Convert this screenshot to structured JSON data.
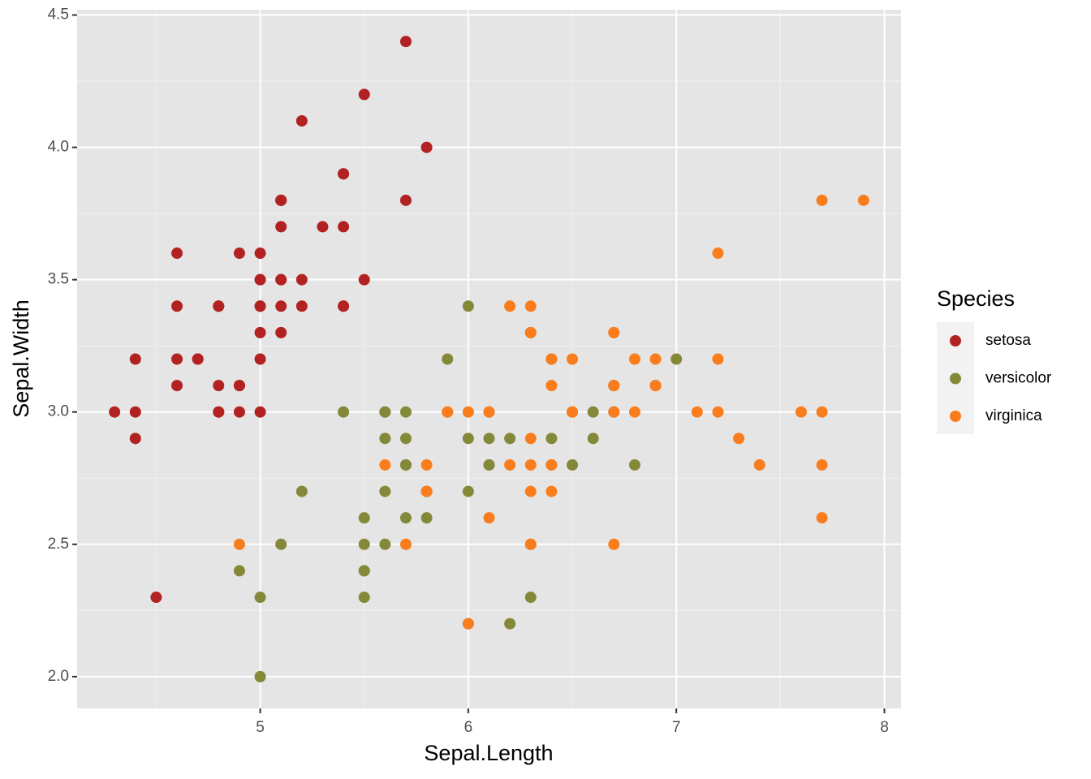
{
  "chart_data": {
    "type": "scatter",
    "x_label": "Sepal.Length",
    "y_label": "Sepal.Width",
    "legend_title": "Species",
    "xlim": [
      4.12,
      8.08
    ],
    "ylim": [
      1.88,
      4.52
    ],
    "xticks": [
      5,
      6,
      7,
      8
    ],
    "yticks": [
      {
        "value": 2,
        "label": "2.0"
      },
      2.5,
      {
        "value": 3,
        "label": "3.0"
      },
      3.5,
      {
        "value": 4,
        "label": "4.0"
      },
      4.5
    ],
    "grid": true,
    "legend": "right",
    "series": [
      {
        "name": "setosa",
        "color": "#b22222",
        "x": [
          5.1,
          4.9,
          4.7,
          4.6,
          5.0,
          5.4,
          4.6,
          5.0,
          4.4,
          4.9,
          5.4,
          4.8,
          4.8,
          4.3,
          5.8,
          5.7,
          5.4,
          5.1,
          5.7,
          5.1,
          5.4,
          5.1,
          4.6,
          5.1,
          4.8,
          5.0,
          5.0,
          5.2,
          5.2,
          4.7,
          4.8,
          5.4,
          5.2,
          5.5,
          4.9,
          5.0,
          5.5,
          4.9,
          4.4,
          5.1,
          5.0,
          4.5,
          4.4,
          5.0,
          5.1,
          4.8,
          5.1,
          4.6,
          5.3,
          5.0
        ],
        "values": [
          3.5,
          3.0,
          3.2,
          3.1,
          3.6,
          3.9,
          3.4,
          3.4,
          2.9,
          3.1,
          3.7,
          3.4,
          3.0,
          3.0,
          4.0,
          4.4,
          3.9,
          3.5,
          3.8,
          3.8,
          3.4,
          3.7,
          3.6,
          3.3,
          3.4,
          3.0,
          3.4,
          3.5,
          3.4,
          3.2,
          3.1,
          3.4,
          4.1,
          4.2,
          3.1,
          3.2,
          3.5,
          3.6,
          3.0,
          3.4,
          3.5,
          2.3,
          3.2,
          3.5,
          3.8,
          3.0,
          3.8,
          3.2,
          3.7,
          3.3
        ]
      },
      {
        "name": "versicolor",
        "color": "#84893a",
        "x": [
          7.0,
          6.4,
          6.9,
          5.5,
          6.5,
          5.7,
          6.3,
          4.9,
          6.6,
          5.2,
          5.0,
          5.9,
          6.0,
          6.1,
          5.6,
          6.7,
          5.6,
          5.8,
          6.2,
          5.6,
          5.9,
          6.1,
          6.3,
          6.1,
          6.4,
          6.6,
          6.8,
          6.7,
          6.0,
          5.7,
          5.5,
          5.5,
          5.8,
          6.0,
          5.4,
          6.0,
          6.7,
          6.3,
          5.6,
          5.5,
          5.5,
          6.1,
          5.8,
          5.0,
          5.6,
          5.7,
          5.7,
          6.2,
          5.1,
          5.7
        ],
        "values": [
          3.2,
          3.2,
          3.1,
          2.3,
          2.8,
          2.8,
          3.3,
          2.4,
          2.9,
          2.7,
          2.0,
          3.0,
          2.2,
          2.9,
          2.9,
          3.1,
          3.0,
          2.7,
          2.2,
          2.5,
          3.2,
          2.8,
          2.5,
          2.8,
          2.9,
          3.0,
          2.8,
          3.0,
          2.9,
          2.6,
          2.4,
          2.4,
          2.7,
          2.7,
          3.0,
          3.4,
          3.1,
          2.3,
          3.0,
          2.5,
          2.6,
          3.0,
          2.6,
          2.3,
          2.7,
          3.0,
          2.9,
          2.9,
          2.5,
          2.8
        ]
      },
      {
        "name": "virginica",
        "color": "#f97d1c",
        "x": [
          6.3,
          5.8,
          7.1,
          6.3,
          6.5,
          7.6,
          4.9,
          7.3,
          6.7,
          7.2,
          6.5,
          6.4,
          6.8,
          5.7,
          5.8,
          6.4,
          6.5,
          7.7,
          7.7,
          6.0,
          6.9,
          5.6,
          7.7,
          6.3,
          6.7,
          7.2,
          6.2,
          6.1,
          6.4,
          7.2,
          7.4,
          7.9,
          6.4,
          6.3,
          6.1,
          7.7,
          6.3,
          6.4,
          6.0,
          6.9,
          6.7,
          6.9,
          5.8,
          6.8,
          6.7,
          6.7,
          6.3,
          6.5,
          6.2,
          5.9
        ],
        "values": [
          3.3,
          2.7,
          3.0,
          2.9,
          3.0,
          3.0,
          2.5,
          2.9,
          2.5,
          3.6,
          3.2,
          2.7,
          3.0,
          2.5,
          2.8,
          3.2,
          3.0,
          3.8,
          2.6,
          2.2,
          3.2,
          2.8,
          2.8,
          2.7,
          3.3,
          3.2,
          2.8,
          3.0,
          2.8,
          3.0,
          2.8,
          3.8,
          2.8,
          2.8,
          2.6,
          3.0,
          3.4,
          3.1,
          3.0,
          3.1,
          3.1,
          3.1,
          2.7,
          3.2,
          3.3,
          3.0,
          2.5,
          3.0,
          3.4,
          3.0
        ]
      }
    ]
  }
}
